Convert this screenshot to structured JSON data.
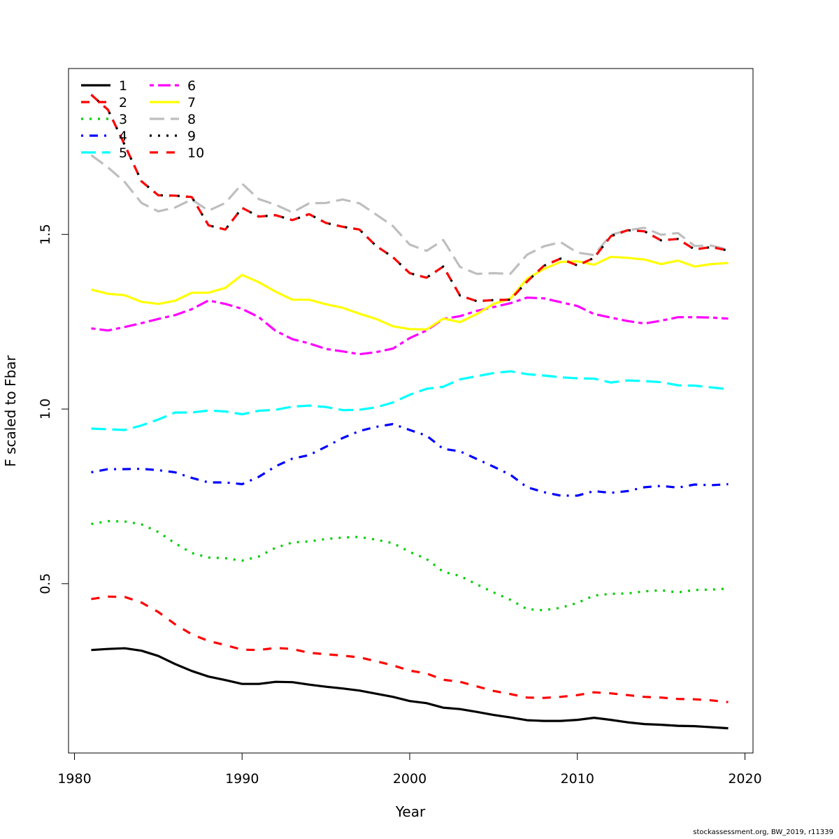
{
  "chart_data": {
    "type": "line",
    "xlabel": "Year",
    "ylabel": "F scaled to Fbar",
    "xlim": [
      1980,
      2020
    ],
    "ylim": [
      0.0152,
      1.975
    ],
    "x_ticks": [
      1980,
      1990,
      2000,
      2010,
      2020
    ],
    "y_ticks": [
      0.5,
      1.0,
      1.5
    ],
    "x_tick_labels": [
      "1980",
      "1990",
      "2000",
      "2010",
      "2020"
    ],
    "y_tick_labels": [
      "0.5",
      "1.0",
      "1.5"
    ],
    "grid": false,
    "legend_position": "top-left",
    "x": [
      1981,
      1982,
      1983,
      1984,
      1985,
      1986,
      1987,
      1988,
      1989,
      1990,
      1991,
      1992,
      1993,
      1994,
      1995,
      1996,
      1997,
      1998,
      1999,
      2000,
      2001,
      2002,
      2003,
      2004,
      2005,
      2006,
      2007,
      2008,
      2009,
      2010,
      2011,
      2012,
      2013,
      2014,
      2015,
      2016,
      2017,
      2018,
      2019
    ],
    "series": [
      {
        "name": "1",
        "color": "#000000",
        "dash": "solid",
        "values": [
          0.31,
          0.313,
          0.315,
          0.308,
          0.293,
          0.27,
          0.25,
          0.234,
          0.224,
          0.213,
          0.213,
          0.219,
          0.218,
          0.211,
          0.205,
          0.2,
          0.194,
          0.185,
          0.176,
          0.164,
          0.158,
          0.145,
          0.141,
          0.133,
          0.124,
          0.117,
          0.109,
          0.107,
          0.107,
          0.11,
          0.116,
          0.11,
          0.103,
          0.098,
          0.096,
          0.093,
          0.092,
          0.089,
          0.086
        ]
      },
      {
        "name": "2",
        "color": "#ff0000",
        "dash": "dashed",
        "values": [
          0.456,
          0.463,
          0.462,
          0.446,
          0.419,
          0.384,
          0.355,
          0.336,
          0.324,
          0.311,
          0.31,
          0.316,
          0.313,
          0.302,
          0.298,
          0.294,
          0.289,
          0.278,
          0.266,
          0.251,
          0.243,
          0.225,
          0.219,
          0.206,
          0.193,
          0.184,
          0.174,
          0.173,
          0.176,
          0.181,
          0.189,
          0.186,
          0.181,
          0.176,
          0.174,
          0.17,
          0.169,
          0.166,
          0.161
        ]
      },
      {
        "name": "3",
        "color": "#00cd00",
        "dash": "dotted",
        "values": [
          0.671,
          0.679,
          0.678,
          0.67,
          0.648,
          0.616,
          0.588,
          0.575,
          0.573,
          0.566,
          0.578,
          0.603,
          0.618,
          0.621,
          0.628,
          0.632,
          0.634,
          0.626,
          0.616,
          0.591,
          0.571,
          0.534,
          0.522,
          0.498,
          0.475,
          0.454,
          0.427,
          0.424,
          0.431,
          0.445,
          0.466,
          0.471,
          0.472,
          0.478,
          0.481,
          0.475,
          0.482,
          0.483,
          0.486
        ]
      },
      {
        "name": "4",
        "color": "#0000ff",
        "dash": "dotdash",
        "values": [
          0.819,
          0.828,
          0.828,
          0.829,
          0.825,
          0.819,
          0.803,
          0.79,
          0.79,
          0.785,
          0.806,
          0.836,
          0.858,
          0.868,
          0.892,
          0.917,
          0.937,
          0.949,
          0.957,
          0.94,
          0.924,
          0.886,
          0.879,
          0.857,
          0.835,
          0.812,
          0.776,
          0.762,
          0.752,
          0.752,
          0.765,
          0.76,
          0.765,
          0.776,
          0.78,
          0.775,
          0.784,
          0.782,
          0.785
        ]
      },
      {
        "name": "5",
        "color": "#00ffff",
        "dash": "longdash",
        "values": [
          0.944,
          0.942,
          0.94,
          0.953,
          0.97,
          0.99,
          0.99,
          0.996,
          0.993,
          0.985,
          0.995,
          0.998,
          1.007,
          1.01,
          1.006,
          0.997,
          0.998,
          1.005,
          1.019,
          1.041,
          1.058,
          1.064,
          1.085,
          1.094,
          1.103,
          1.108,
          1.1,
          1.096,
          1.091,
          1.088,
          1.087,
          1.076,
          1.082,
          1.08,
          1.077,
          1.068,
          1.067,
          1.062,
          1.057
        ]
      },
      {
        "name": "6",
        "color": "#ff00ff",
        "dash": "twodash",
        "values": [
          1.231,
          1.225,
          1.235,
          1.246,
          1.258,
          1.269,
          1.286,
          1.311,
          1.301,
          1.287,
          1.263,
          1.224,
          1.2,
          1.188,
          1.172,
          1.165,
          1.157,
          1.163,
          1.173,
          1.203,
          1.225,
          1.258,
          1.266,
          1.281,
          1.292,
          1.303,
          1.319,
          1.317,
          1.306,
          1.295,
          1.272,
          1.262,
          1.252,
          1.245,
          1.253,
          1.263,
          1.263,
          1.262,
          1.259
        ]
      },
      {
        "name": "7",
        "color": "#ffff00",
        "dash": "solid",
        "values": [
          1.342,
          1.33,
          1.326,
          1.307,
          1.301,
          1.31,
          1.333,
          1.333,
          1.347,
          1.384,
          1.363,
          1.336,
          1.313,
          1.313,
          1.3,
          1.29,
          1.273,
          1.258,
          1.237,
          1.229,
          1.228,
          1.259,
          1.249,
          1.272,
          1.301,
          1.316,
          1.373,
          1.401,
          1.421,
          1.423,
          1.413,
          1.436,
          1.433,
          1.428,
          1.415,
          1.425,
          1.408,
          1.415,
          1.418
        ]
      },
      {
        "name": "8",
        "color": "#bebebe",
        "dash": "longdash",
        "values": [
          1.727,
          1.692,
          1.65,
          1.59,
          1.566,
          1.577,
          1.6,
          1.568,
          1.59,
          1.645,
          1.601,
          1.585,
          1.563,
          1.589,
          1.59,
          1.6,
          1.589,
          1.557,
          1.524,
          1.471,
          1.453,
          1.484,
          1.407,
          1.387,
          1.389,
          1.387,
          1.442,
          1.466,
          1.478,
          1.448,
          1.441,
          1.499,
          1.512,
          1.519,
          1.499,
          1.504,
          1.467,
          1.468,
          1.457
        ]
      },
      {
        "name": "9",
        "color": "#000000",
        "dash": "dotted",
        "values": [
          1.9,
          1.857,
          1.756,
          1.652,
          1.612,
          1.611,
          1.607,
          1.526,
          1.514,
          1.576,
          1.551,
          1.555,
          1.541,
          1.558,
          1.533,
          1.522,
          1.514,
          1.467,
          1.435,
          1.389,
          1.376,
          1.408,
          1.325,
          1.309,
          1.312,
          1.313,
          1.365,
          1.41,
          1.431,
          1.411,
          1.433,
          1.495,
          1.512,
          1.509,
          1.483,
          1.487,
          1.457,
          1.464,
          1.454
        ]
      },
      {
        "name": "10",
        "color": "#ff0000",
        "dash": "dashed",
        "values": [
          1.9,
          1.857,
          1.756,
          1.652,
          1.612,
          1.611,
          1.607,
          1.526,
          1.514,
          1.576,
          1.551,
          1.555,
          1.541,
          1.558,
          1.533,
          1.522,
          1.514,
          1.467,
          1.435,
          1.389,
          1.376,
          1.408,
          1.325,
          1.309,
          1.312,
          1.313,
          1.365,
          1.41,
          1.431,
          1.411,
          1.433,
          1.495,
          1.512,
          1.509,
          1.483,
          1.487,
          1.457,
          1.464,
          1.454
        ]
      }
    ]
  },
  "footer": {
    "credit": "stockassessment.org, BW_2019, r11339"
  }
}
